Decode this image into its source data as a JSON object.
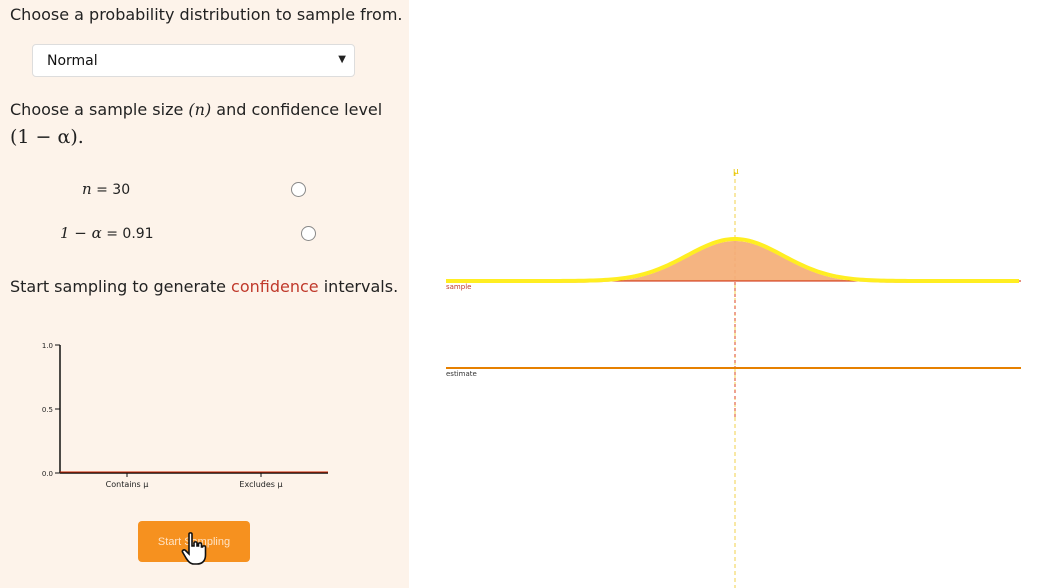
{
  "controls": {
    "dist_prompt": "Choose a probability distribution to sample from.",
    "dist_selected": "Normal",
    "size_prompt_a": "Choose a sample size ",
    "size_prompt_n": "(n)",
    "size_prompt_b": " and confidence level",
    "size_prompt_conf": "(1 − α).",
    "n_symbol": "n",
    "n_value": "= 30",
    "conf_symbol": "1 − α",
    "conf_value": "= 0.91",
    "start_prompt_a": "Start sampling to generate ",
    "start_prompt_b": "confidence",
    "start_prompt_c": " intervals.",
    "start_button": "Start Sampling"
  },
  "chart_data": {
    "type": "bar",
    "categories": [
      "Contains μ",
      "Excludes μ"
    ],
    "values": [
      0,
      0
    ],
    "ylim": [
      0,
      1.0
    ],
    "yticks": [
      "0.0",
      "0.5",
      "1.0"
    ],
    "xlabel": "",
    "ylabel": ""
  },
  "viz": {
    "mu_label": "μ",
    "sample_label": "sample",
    "estimate_label": "estimate",
    "colors": {
      "curve": "#ffee22",
      "fill": "#f4b07a",
      "line": "#cc2200",
      "mu": "#f2d04b"
    }
  }
}
